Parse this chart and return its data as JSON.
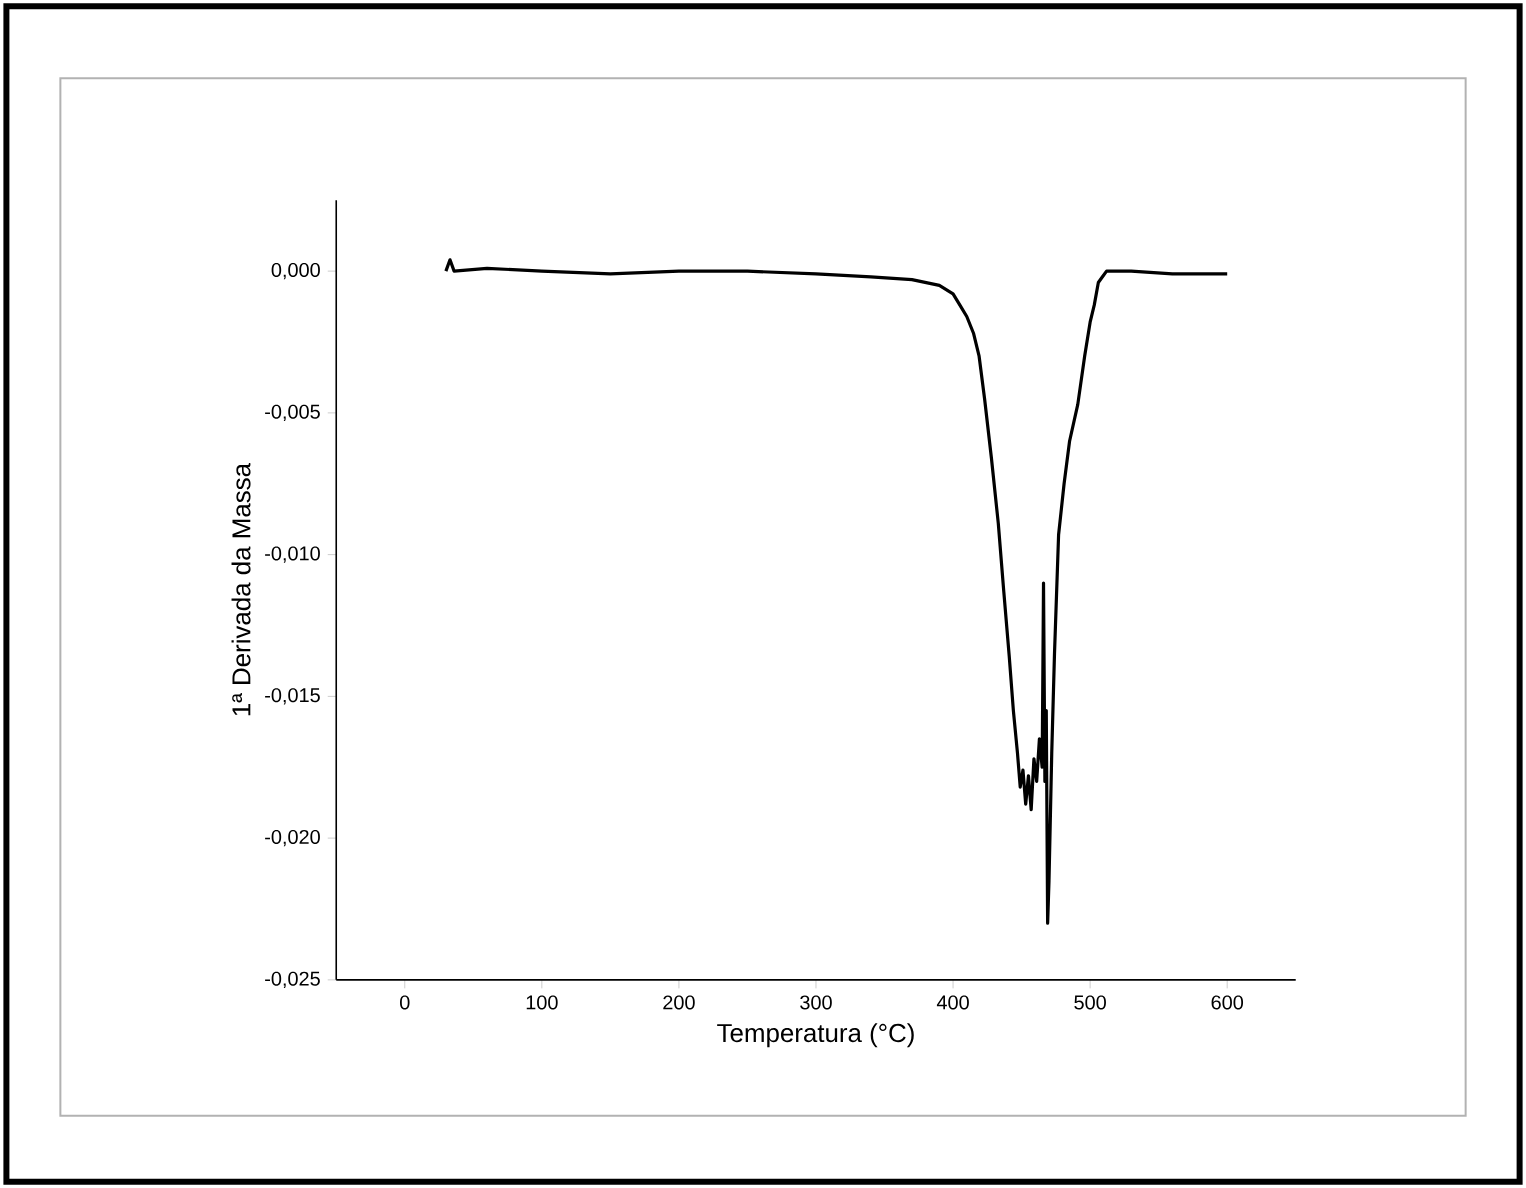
{
  "chart_data": {
    "type": "line",
    "xlabel": "Temperatura (°C)",
    "ylabel": "1ª Derivada da Massa",
    "xlim": [
      -50,
      650
    ],
    "xticks": [
      0,
      100,
      200,
      300,
      400,
      500,
      600
    ],
    "ylim": [
      -0.025,
      0.0025
    ],
    "yticks": [
      {
        "value": 0,
        "label": "0,000"
      },
      {
        "value": -0.005,
        "label": "-0,005"
      },
      {
        "value": -0.01,
        "label": "-0,010"
      },
      {
        "value": -0.015,
        "label": "-0,015"
      },
      {
        "value": -0.02,
        "label": "-0,020"
      },
      {
        "value": -0.025,
        "label": "-0,025"
      }
    ],
    "grid": false,
    "marker": "none",
    "line_style": "solid",
    "series": [
      {
        "color": "#000000",
        "x": [
          30,
          33,
          36,
          60,
          100,
          150,
          200,
          250,
          300,
          340,
          370,
          390,
          400,
          405,
          410,
          415,
          419,
          423,
          428,
          433,
          437,
          441,
          444,
          447,
          449,
          451,
          453,
          455,
          457,
          459,
          461,
          463,
          465,
          466,
          467,
          468,
          469,
          470,
          472,
          474,
          477,
          481,
          485,
          491,
          496,
          500,
          503,
          506,
          509,
          512,
          530,
          560,
          600
        ],
        "values": [
          0,
          0.0004,
          0,
          0.0001,
          0,
          -0.0001,
          0,
          0,
          -0.0001,
          -0.0002,
          -0.0003,
          -0.0005,
          -0.0008,
          -0.0012,
          -0.0016,
          -0.0022,
          -0.003,
          -0.0045,
          -0.0066,
          -0.0089,
          -0.0113,
          -0.0136,
          -0.0155,
          -0.017,
          -0.0182,
          -0.0176,
          -0.0188,
          -0.0178,
          -0.019,
          -0.0172,
          -0.018,
          -0.0165,
          -0.0175,
          -0.011,
          -0.018,
          -0.0155,
          -0.023,
          -0.0215,
          -0.017,
          -0.0135,
          -0.0093,
          -0.0075,
          -0.006,
          -0.0047,
          -0.003,
          -0.0018,
          -0.0012,
          -0.0004,
          -0.0002,
          0,
          0,
          -0.0001,
          -0.0001
        ]
      }
    ]
  }
}
